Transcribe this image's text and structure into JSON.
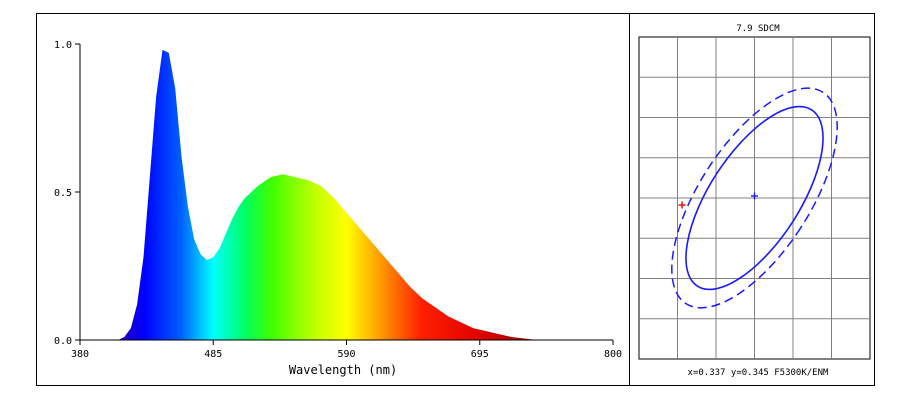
{
  "chart_data": [
    {
      "type": "area",
      "xlabel": "Wavelength (nm)",
      "ylabel": "",
      "xlim": [
        380,
        800
      ],
      "ylim": [
        0,
        1.0
      ],
      "xticks": [
        "380",
        "485",
        "590",
        "695",
        "800"
      ],
      "yticks": [
        "0.0",
        "0.5",
        "1.0"
      ],
      "grid": false,
      "fill": "spectral-rainbow",
      "x": [
        380,
        390,
        400,
        410,
        415,
        420,
        425,
        430,
        435,
        440,
        445,
        450,
        455,
        460,
        465,
        470,
        475,
        480,
        485,
        490,
        495,
        500,
        505,
        510,
        520,
        530,
        540,
        550,
        560,
        570,
        580,
        590,
        600,
        610,
        620,
        630,
        640,
        650,
        660,
        670,
        680,
        690,
        700,
        710,
        720,
        730,
        740,
        750,
        760,
        780,
        800
      ],
      "y": [
        0.0,
        0.0,
        0.0,
        0.0,
        0.01,
        0.04,
        0.12,
        0.28,
        0.55,
        0.82,
        0.98,
        0.97,
        0.85,
        0.62,
        0.45,
        0.34,
        0.29,
        0.27,
        0.28,
        0.31,
        0.36,
        0.41,
        0.45,
        0.48,
        0.52,
        0.55,
        0.56,
        0.55,
        0.54,
        0.52,
        0.48,
        0.43,
        0.38,
        0.33,
        0.28,
        0.23,
        0.18,
        0.14,
        0.11,
        0.08,
        0.06,
        0.04,
        0.03,
        0.02,
        0.01,
        0.005,
        0.0,
        0.0,
        0.0,
        0.0,
        0.0
      ]
    },
    {
      "type": "scatter",
      "title": "7.9 SDCM",
      "caption": "x=0.337 y=0.345 F5300K/ENM",
      "grid": true,
      "series": [
        {
          "role": "ellipse-solid",
          "color": "#1a1aff"
        },
        {
          "role": "ellipse-dashed",
          "color": "#1a1aff"
        },
        {
          "role": "center-point",
          "marker": "+",
          "color": "#1a1aff"
        },
        {
          "role": "measured-point",
          "marker": "+",
          "color": "#ff0000"
        }
      ]
    }
  ],
  "colors": {
    "frame": "#000000",
    "grid": "#808080",
    "ellipse": "#1a1aff",
    "measured": "#ff0000"
  }
}
